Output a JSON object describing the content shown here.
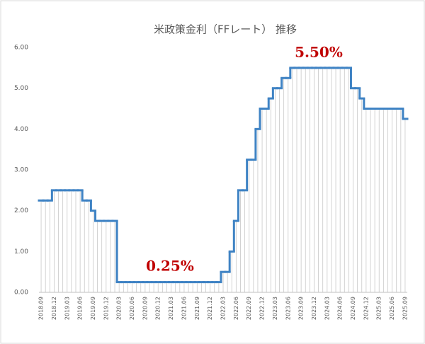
{
  "chart_data": {
    "type": "step",
    "title": "米政策金利（FFレート） 推移",
    "categories": [
      "2018.09",
      null,
      null,
      "2018.12",
      null,
      null,
      "2019.03",
      null,
      null,
      "2019.06",
      null,
      null,
      "2019.09",
      null,
      null,
      "2019.12",
      null,
      null,
      "2020.03",
      null,
      null,
      "2020.06",
      null,
      null,
      "2020.09",
      null,
      null,
      "2020.12",
      null,
      null,
      "2021.03",
      null,
      null,
      "2021.06",
      null,
      null,
      "2021.09",
      null,
      null,
      "2021.12",
      null,
      null,
      "2022.03",
      null,
      null,
      "2022.06",
      null,
      null,
      "2022.09",
      null,
      null,
      "2022.12",
      null,
      null,
      "2023.03",
      null,
      null,
      "2023.06",
      null,
      null,
      "2023.09",
      null,
      null,
      "2023.12",
      null,
      null,
      "2024.03",
      null,
      null,
      "2024.06",
      null,
      null,
      "2024.09",
      null,
      null,
      "2024.12",
      null,
      null,
      "2025.03",
      null,
      null,
      "2025.06",
      null,
      null,
      "2025.09"
    ],
    "values": [
      2.25,
      2.25,
      2.25,
      2.5,
      2.5,
      2.5,
      2.5,
      2.5,
      2.5,
      2.5,
      2.25,
      2.25,
      2.0,
      1.75,
      1.75,
      1.75,
      1.75,
      1.75,
      0.25,
      0.25,
      0.25,
      0.25,
      0.25,
      0.25,
      0.25,
      0.25,
      0.25,
      0.25,
      0.25,
      0.25,
      0.25,
      0.25,
      0.25,
      0.25,
      0.25,
      0.25,
      0.25,
      0.25,
      0.25,
      0.25,
      0.25,
      0.25,
      0.5,
      0.5,
      1.0,
      1.75,
      2.5,
      2.5,
      3.25,
      3.25,
      4.0,
      4.5,
      4.5,
      4.75,
      5.0,
      5.0,
      5.25,
      5.25,
      5.5,
      5.5,
      5.5,
      5.5,
      5.5,
      5.5,
      5.5,
      5.5,
      5.5,
      5.5,
      5.5,
      5.5,
      5.5,
      5.5,
      5.0,
      5.0,
      4.75,
      4.5,
      4.5,
      4.5,
      4.5,
      4.5,
      4.5,
      4.5,
      4.5,
      4.5,
      4.25
    ],
    "color": "#3f83c4",
    "bar_color": "#c8c8c8",
    "ylim": [
      0,
      6
    ],
    "yticks": [
      {
        "value": 0,
        "label": "0.00"
      },
      {
        "value": 1,
        "label": "1.00"
      },
      {
        "value": 2,
        "label": "2.00"
      },
      {
        "value": 3,
        "label": "3.00"
      },
      {
        "value": 4,
        "label": "4.00"
      },
      {
        "value": 5,
        "label": "5.00"
      },
      {
        "value": 6,
        "label": "6.00"
      }
    ],
    "annotations": [
      "5.50%",
      "0.25%"
    ]
  }
}
